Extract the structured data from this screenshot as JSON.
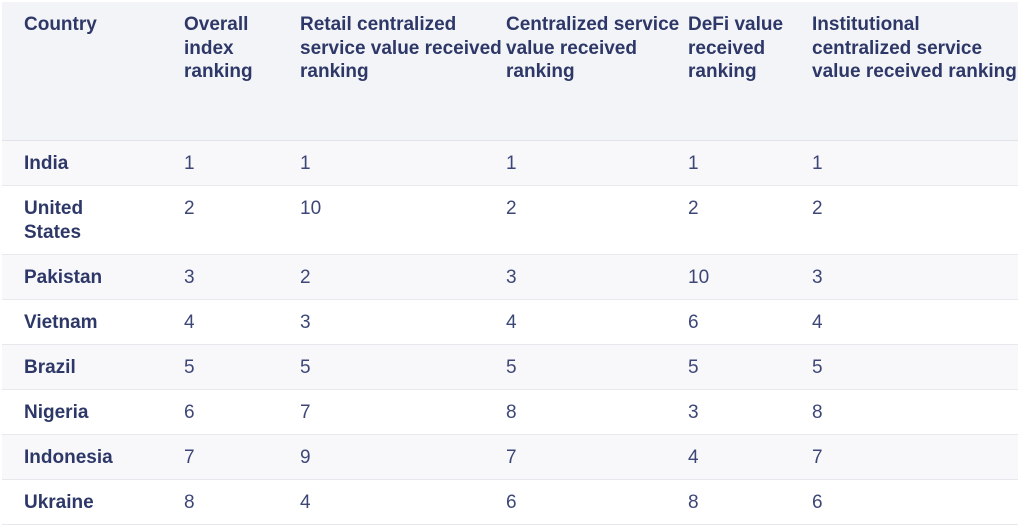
{
  "table": {
    "headers": [
      "Country",
      "Overall index ranking",
      "Retail centralized service value received ranking",
      "Centralized service value received ranking",
      "DeFi value received ranking",
      "Institutional centralized service value received ranking"
    ],
    "rows": [
      [
        "India",
        "1",
        "1",
        "1",
        "1",
        "1"
      ],
      [
        "United States",
        "2",
        "10",
        "2",
        "2",
        "2"
      ],
      [
        "Pakistan",
        "3",
        "2",
        "3",
        "10",
        "3"
      ],
      [
        "Vietnam",
        "4",
        "3",
        "4",
        "6",
        "4"
      ],
      [
        "Brazil",
        "5",
        "5",
        "5",
        "5",
        "5"
      ],
      [
        "Nigeria",
        "6",
        "7",
        "8",
        "3",
        "8"
      ],
      [
        "Indonesia",
        "7",
        "9",
        "7",
        "4",
        "7"
      ],
      [
        "Ukraine",
        "8",
        "4",
        "6",
        "8",
        "6"
      ]
    ]
  }
}
